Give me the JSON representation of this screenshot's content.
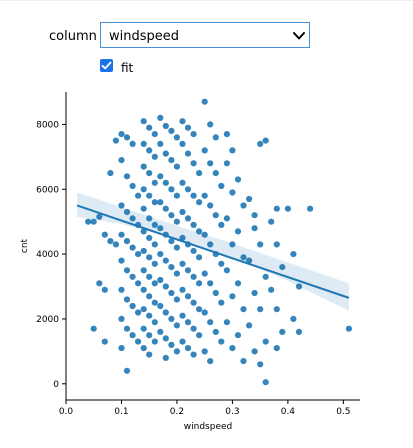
{
  "widget": {
    "column_label": "column",
    "selected_column": "windspeed",
    "fit_label": "fit",
    "fit_checked": true
  },
  "chart_data": {
    "type": "scatter",
    "xlabel": "windspeed",
    "ylabel": "cnt",
    "xlim": [
      0.0,
      0.53
    ],
    "ylim": [
      -500,
      9000
    ],
    "xticks": [
      "0.0",
      "0.1",
      "0.2",
      "0.3",
      "0.4",
      "0.5"
    ],
    "yticks": [
      "0",
      "2000",
      "4000",
      "6000",
      "8000"
    ],
    "point_color": "#1f77b4",
    "regression": {
      "x": [
        0.02,
        0.51
      ],
      "y": [
        5500,
        2650
      ]
    },
    "confidence_band": {
      "x": [
        0.02,
        0.1,
        0.2,
        0.3,
        0.4,
        0.51
      ],
      "lower": [
        5150,
        4930,
        4470,
        3900,
        3170,
        2250
      ],
      "upper": [
        5900,
        5450,
        4870,
        4330,
        3740,
        3100
      ]
    },
    "points": [
      [
        0.05,
        5000
      ],
      [
        0.06,
        5150
      ],
      [
        0.04,
        5000
      ],
      [
        0.07,
        4600
      ],
      [
        0.08,
        4400
      ],
      [
        0.09,
        4300
      ],
      [
        0.06,
        3100
      ],
      [
        0.07,
        2900
      ],
      [
        0.05,
        1700
      ],
      [
        0.07,
        1300
      ],
      [
        0.08,
        6500
      ],
      [
        0.09,
        7500
      ],
      [
        0.1,
        7700
      ],
      [
        0.11,
        7600
      ],
      [
        0.12,
        7400
      ],
      [
        0.1,
        6900
      ],
      [
        0.11,
        6400
      ],
      [
        0.12,
        6100
      ],
      [
        0.13,
        5800
      ],
      [
        0.1,
        5500
      ],
      [
        0.11,
        5300
      ],
      [
        0.12,
        5100
      ],
      [
        0.13,
        4900
      ],
      [
        0.1,
        4600
      ],
      [
        0.11,
        4400
      ],
      [
        0.12,
        4200
      ],
      [
        0.13,
        4000
      ],
      [
        0.1,
        3800
      ],
      [
        0.11,
        3500
      ],
      [
        0.12,
        3300
      ],
      [
        0.13,
        3100
      ],
      [
        0.1,
        2900
      ],
      [
        0.11,
        2600
      ],
      [
        0.12,
        2400
      ],
      [
        0.13,
        2200
      ],
      [
        0.1,
        2000
      ],
      [
        0.11,
        1700
      ],
      [
        0.12,
        1500
      ],
      [
        0.13,
        1300
      ],
      [
        0.1,
        1100
      ],
      [
        0.14,
        8100
      ],
      [
        0.15,
        7900
      ],
      [
        0.16,
        7700
      ],
      [
        0.14,
        7400
      ],
      [
        0.15,
        7200
      ],
      [
        0.16,
        7000
      ],
      [
        0.14,
        6700
      ],
      [
        0.15,
        6500
      ],
      [
        0.16,
        6200
      ],
      [
        0.14,
        6000
      ],
      [
        0.15,
        5800
      ],
      [
        0.16,
        5600
      ],
      [
        0.14,
        5400
      ],
      [
        0.15,
        5100
      ],
      [
        0.16,
        4900
      ],
      [
        0.14,
        4700
      ],
      [
        0.15,
        4500
      ],
      [
        0.16,
        4300
      ],
      [
        0.14,
        4100
      ],
      [
        0.15,
        3900
      ],
      [
        0.16,
        3700
      ],
      [
        0.14,
        3500
      ],
      [
        0.15,
        3300
      ],
      [
        0.16,
        3100
      ],
      [
        0.14,
        2900
      ],
      [
        0.15,
        2700
      ],
      [
        0.16,
        2500
      ],
      [
        0.14,
        2300
      ],
      [
        0.15,
        2100
      ],
      [
        0.16,
        1900
      ],
      [
        0.14,
        1700
      ],
      [
        0.15,
        1500
      ],
      [
        0.16,
        1300
      ],
      [
        0.14,
        1100
      ],
      [
        0.15,
        900
      ],
      [
        0.11,
        400
      ],
      [
        0.17,
        8200
      ],
      [
        0.18,
        7950
      ],
      [
        0.19,
        7800
      ],
      [
        0.2,
        7600
      ],
      [
        0.17,
        7400
      ],
      [
        0.18,
        7100
      ],
      [
        0.19,
        6900
      ],
      [
        0.2,
        6700
      ],
      [
        0.17,
        6400
      ],
      [
        0.18,
        6200
      ],
      [
        0.19,
        6000
      ],
      [
        0.2,
        5800
      ],
      [
        0.17,
        5600
      ],
      [
        0.18,
        5400
      ],
      [
        0.19,
        5200
      ],
      [
        0.2,
        5000
      ],
      [
        0.17,
        4800
      ],
      [
        0.18,
        4600
      ],
      [
        0.19,
        4400
      ],
      [
        0.2,
        4200
      ],
      [
        0.17,
        4000
      ],
      [
        0.18,
        3800
      ],
      [
        0.19,
        3600
      ],
      [
        0.2,
        3400
      ],
      [
        0.17,
        3200
      ],
      [
        0.18,
        3000
      ],
      [
        0.19,
        2800
      ],
      [
        0.2,
        2600
      ],
      [
        0.17,
        2400
      ],
      [
        0.18,
        2200
      ],
      [
        0.19,
        2000
      ],
      [
        0.2,
        1800
      ],
      [
        0.17,
        1600
      ],
      [
        0.18,
        1400
      ],
      [
        0.19,
        1200
      ],
      [
        0.2,
        1000
      ],
      [
        0.18,
        800
      ],
      [
        0.21,
        8100
      ],
      [
        0.22,
        7900
      ],
      [
        0.23,
        7700
      ],
      [
        0.21,
        7400
      ],
      [
        0.22,
        7100
      ],
      [
        0.23,
        6800
      ],
      [
        0.24,
        6500
      ],
      [
        0.21,
        6200
      ],
      [
        0.22,
        6000
      ],
      [
        0.23,
        5800
      ],
      [
        0.24,
        5600
      ],
      [
        0.21,
        5300
      ],
      [
        0.22,
        5100
      ],
      [
        0.23,
        4900
      ],
      [
        0.24,
        4700
      ],
      [
        0.21,
        4500
      ],
      [
        0.22,
        4300
      ],
      [
        0.23,
        4100
      ],
      [
        0.24,
        3900
      ],
      [
        0.21,
        3700
      ],
      [
        0.22,
        3500
      ],
      [
        0.23,
        3300
      ],
      [
        0.24,
        3100
      ],
      [
        0.21,
        2900
      ],
      [
        0.22,
        2700
      ],
      [
        0.23,
        2500
      ],
      [
        0.24,
        2300
      ],
      [
        0.21,
        2100
      ],
      [
        0.22,
        1900
      ],
      [
        0.23,
        1700
      ],
      [
        0.24,
        1500
      ],
      [
        0.21,
        1300
      ],
      [
        0.22,
        1100
      ],
      [
        0.23,
        900
      ],
      [
        0.25,
        8700
      ],
      [
        0.26,
        8000
      ],
      [
        0.27,
        7600
      ],
      [
        0.25,
        7200
      ],
      [
        0.26,
        6800
      ],
      [
        0.27,
        6500
      ],
      [
        0.28,
        6100
      ],
      [
        0.25,
        5800
      ],
      [
        0.26,
        5500
      ],
      [
        0.27,
        5200
      ],
      [
        0.28,
        4900
      ],
      [
        0.25,
        4600
      ],
      [
        0.26,
        4300
      ],
      [
        0.27,
        4000
      ],
      [
        0.28,
        3700
      ],
      [
        0.25,
        3400
      ],
      [
        0.26,
        3100
      ],
      [
        0.27,
        2800
      ],
      [
        0.28,
        2500
      ],
      [
        0.25,
        2200
      ],
      [
        0.26,
        1900
      ],
      [
        0.27,
        1600
      ],
      [
        0.28,
        1300
      ],
      [
        0.25,
        1000
      ],
      [
        0.26,
        700
      ],
      [
        0.29,
        7700
      ],
      [
        0.3,
        7200
      ],
      [
        0.29,
        6800
      ],
      [
        0.31,
        6300
      ],
      [
        0.3,
        5900
      ],
      [
        0.32,
        5500
      ],
      [
        0.29,
        5100
      ],
      [
        0.31,
        4700
      ],
      [
        0.3,
        4300
      ],
      [
        0.32,
        3900
      ],
      [
        0.29,
        3500
      ],
      [
        0.31,
        3100
      ],
      [
        0.3,
        2700
      ],
      [
        0.32,
        2300
      ],
      [
        0.29,
        1900
      ],
      [
        0.31,
        1500
      ],
      [
        0.3,
        1100
      ],
      [
        0.32,
        700
      ],
      [
        0.33,
        5700
      ],
      [
        0.34,
        5200
      ],
      [
        0.35,
        7400
      ],
      [
        0.36,
        7500
      ],
      [
        0.34,
        4800
      ],
      [
        0.35,
        4300
      ],
      [
        0.33,
        3800
      ],
      [
        0.36,
        3300
      ],
      [
        0.34,
        2800
      ],
      [
        0.35,
        2300
      ],
      [
        0.33,
        1800
      ],
      [
        0.36,
        1300
      ],
      [
        0.34,
        1000
      ],
      [
        0.35,
        600
      ],
      [
        0.36,
        50
      ],
      [
        0.37,
        5000
      ],
      [
        0.38,
        5400
      ],
      [
        0.38,
        4300
      ],
      [
        0.39,
        3600
      ],
      [
        0.37,
        2900
      ],
      [
        0.38,
        2300
      ],
      [
        0.39,
        1600
      ],
      [
        0.38,
        1100
      ],
      [
        0.4,
        5400
      ],
      [
        0.41,
        4000
      ],
      [
        0.42,
        3000
      ],
      [
        0.41,
        2000
      ],
      [
        0.42,
        1600
      ],
      [
        0.44,
        5400
      ],
      [
        0.51,
        1700
      ]
    ]
  }
}
